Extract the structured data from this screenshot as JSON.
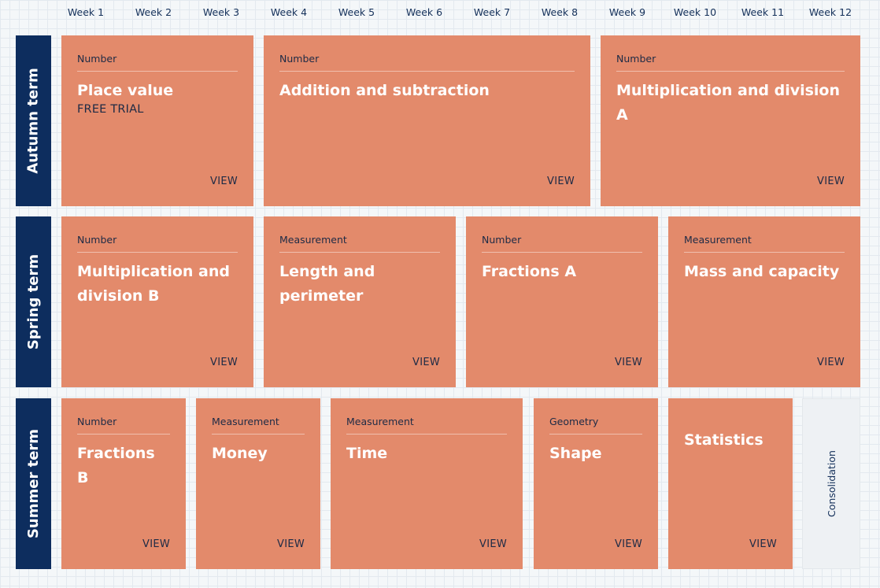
{
  "weeks": [
    "Week 1",
    "Week 2",
    "Week 3",
    "Week 4",
    "Week 5",
    "Week 6",
    "Week 7",
    "Week 8",
    "Week 9",
    "Week 10",
    "Week 11",
    "Week 12"
  ],
  "terms": {
    "autumn": "Autumn term",
    "spring": "Spring term",
    "summer": "Summer term"
  },
  "autumn_cards": [
    {
      "strand": "Number",
      "title": "Place value",
      "trial": "FREE TRIAL",
      "view": "VIEW"
    },
    {
      "strand": "Number",
      "title": "Addition and subtraction",
      "view": "VIEW"
    },
    {
      "strand": "Number",
      "title": "Multiplication and division A",
      "view": "VIEW"
    }
  ],
  "spring_cards": [
    {
      "strand": "Number",
      "title_line1": "Multiplication and",
      "title_line2": "division B",
      "view": "VIEW"
    },
    {
      "strand": "Measurement",
      "title_line1": "Length and",
      "title_line2": "perimeter",
      "view": "VIEW"
    },
    {
      "strand": "Number",
      "title": "Fractions A",
      "view": "VIEW"
    },
    {
      "strand": "Measurement",
      "title": "Mass and capacity",
      "view": "VIEW"
    }
  ],
  "summer_cards": [
    {
      "strand": "Number",
      "title": "Fractions B",
      "view": "VIEW"
    },
    {
      "strand": "Measurement",
      "title": "Money",
      "view": "VIEW"
    },
    {
      "strand": "Measurement",
      "title": "Time",
      "view": "VIEW"
    },
    {
      "strand": "Geometry",
      "title": "Shape",
      "view": "VIEW"
    },
    {
      "title": "Statistics",
      "view": "VIEW"
    }
  ],
  "consolidation": "Consolidation",
  "colors": {
    "card": "#e38a6b",
    "term_bar": "#0d2d5e",
    "text_dark": "#14305a",
    "consolidation_bg": "#eef1f4"
  }
}
